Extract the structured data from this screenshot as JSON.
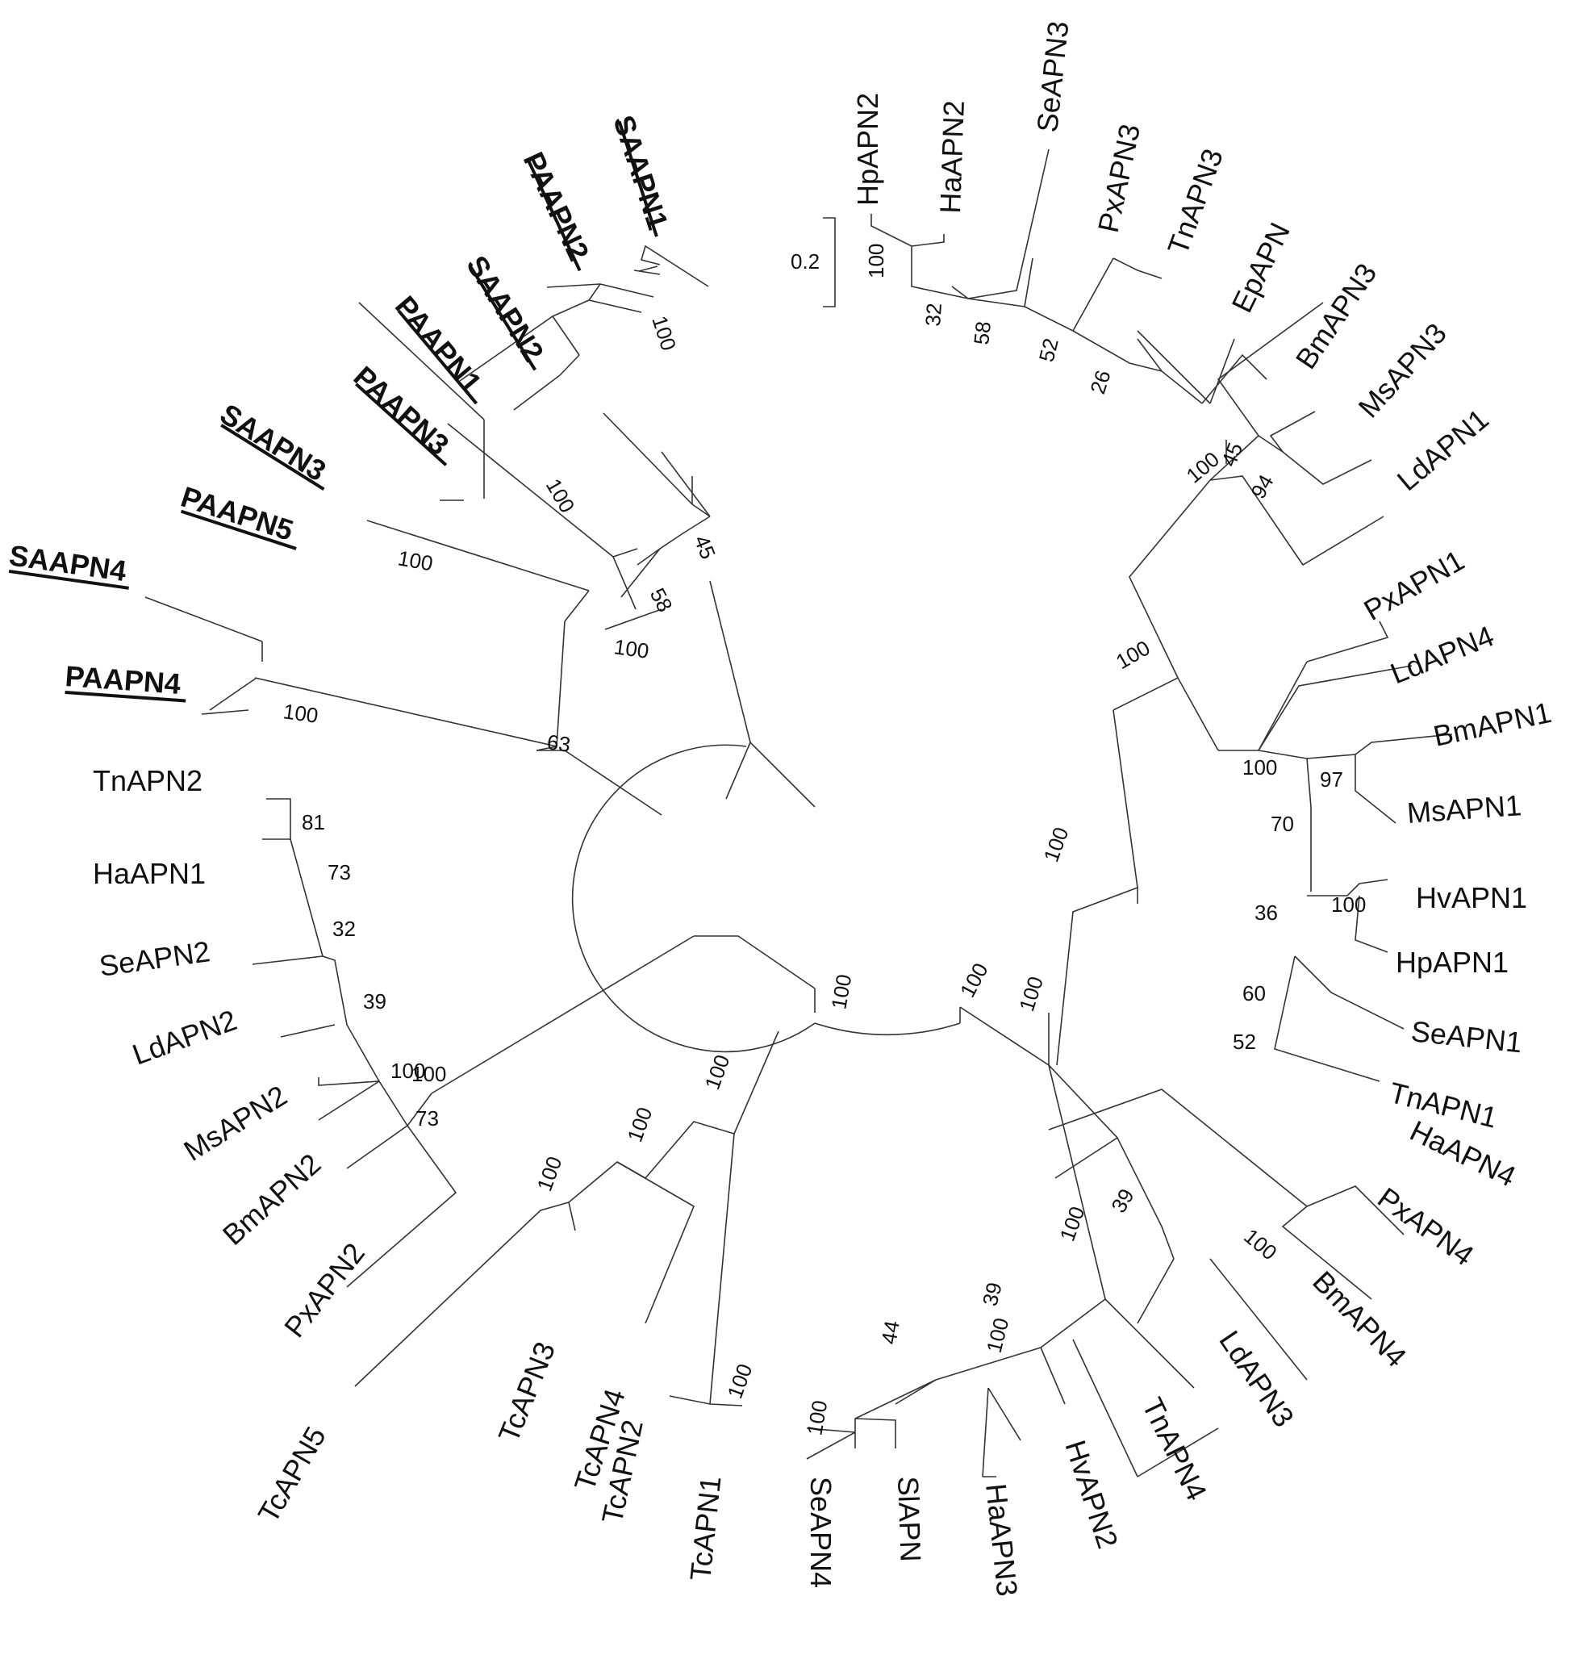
{
  "figure": {
    "type": "circular-phylogenetic-tree",
    "scale_bar": {
      "label": "0.2"
    }
  },
  "taxa_underlined": [
    "SAAPN1",
    "PAAPN2",
    "SAAPN2",
    "PAAPN1",
    "PAAPN3",
    "SAAPN3",
    "PAAPN5",
    "SAAPN4",
    "PAAPN4"
  ],
  "leaves": [
    {
      "id": "SAAPN1",
      "label": "SAAPN1",
      "bold": true
    },
    {
      "id": "PAAPN2",
      "label": "PAAPN2",
      "bold": true
    },
    {
      "id": "SAAPN2",
      "label": "SAAPN2",
      "bold": true
    },
    {
      "id": "PAAPN1",
      "label": "PAAPN1",
      "bold": true
    },
    {
      "id": "PAAPN3",
      "label": "PAAPN3",
      "bold": true
    },
    {
      "id": "SAAPN3",
      "label": "SAAPN3",
      "bold": true
    },
    {
      "id": "PAAPN5",
      "label": "PAAPN5",
      "bold": true
    },
    {
      "id": "SAAPN4",
      "label": "SAAPN4",
      "bold": true
    },
    {
      "id": "PAAPN4",
      "label": "PAAPN4",
      "bold": true
    },
    {
      "id": "TnAPN2",
      "label": "TnAPN2"
    },
    {
      "id": "HaAPN1",
      "label": "HaAPN1"
    },
    {
      "id": "SeAPN2",
      "label": "SeAPN2"
    },
    {
      "id": "LdAPN2",
      "label": "LdAPN2"
    },
    {
      "id": "MsAPN2",
      "label": "MsAPN2"
    },
    {
      "id": "BmAPN2",
      "label": "BmAPN2"
    },
    {
      "id": "PxAPN2",
      "label": "PxAPN2"
    },
    {
      "id": "TcAPN5",
      "label": "TcAPN5"
    },
    {
      "id": "TcAPN3",
      "label": "TcAPN3"
    },
    {
      "id": "TcAPN4",
      "label": "TcAPN4"
    },
    {
      "id": "TcAPN2",
      "label": "TcAPN2"
    },
    {
      "id": "TcAPN1",
      "label": "TcAPN1"
    },
    {
      "id": "SeAPN4",
      "label": "SeAPN4"
    },
    {
      "id": "SlAPN",
      "label": "SlAPN"
    },
    {
      "id": "HaAPN3",
      "label": "HaAPN3"
    },
    {
      "id": "HvAPN2",
      "label": "HvAPN2"
    },
    {
      "id": "TnAPN4",
      "label": "TnAPN4"
    },
    {
      "id": "LdAPN3",
      "label": "LdAPN3"
    },
    {
      "id": "BmAPN4",
      "label": "BmAPN4"
    },
    {
      "id": "PxAPN4",
      "label": "PxAPN4"
    },
    {
      "id": "HaAPN4",
      "label": "HaAPN4"
    },
    {
      "id": "TnAPN1",
      "label": "TnAPN1"
    },
    {
      "id": "SeAPN1",
      "label": "SeAPN1"
    },
    {
      "id": "HpAPN1",
      "label": "HpAPN1"
    },
    {
      "id": "HvAPN1",
      "label": "HvAPN1"
    },
    {
      "id": "MsAPN1",
      "label": "MsAPN1"
    },
    {
      "id": "BmAPN1",
      "label": "BmAPN1"
    },
    {
      "id": "LdAPN4",
      "label": "LdAPN4"
    },
    {
      "id": "PxAPN1",
      "label": "PxAPN1"
    },
    {
      "id": "LdAPN1",
      "label": "LdAPN1"
    },
    {
      "id": "MsAPN3",
      "label": "MsAPN3"
    },
    {
      "id": "BmAPN3",
      "label": "BmAPN3"
    },
    {
      "id": "EpAPN",
      "label": "EpAPN"
    },
    {
      "id": "TnAPN3",
      "label": "TnAPN3"
    },
    {
      "id": "PxAPN3",
      "label": "PxAPN3"
    },
    {
      "id": "SeAPN3",
      "label": "SeAPN3"
    },
    {
      "id": "HaAPN2",
      "label": "HaAPN2"
    },
    {
      "id": "HpAPN2",
      "label": "HpAPN2"
    }
  ],
  "bootstrap": [
    "100",
    "100",
    "45",
    "58",
    "100",
    "100",
    "100",
    "63",
    "100",
    "81",
    "73",
    "32",
    "39",
    "100",
    "73",
    "100",
    "100",
    "100",
    "100",
    "100",
    "44",
    "39",
    "100",
    "100",
    "39",
    "100",
    "100",
    "100",
    "100",
    "100",
    "52",
    "60",
    "36",
    "100",
    "70",
    "97",
    "100",
    "100",
    "94",
    "45",
    "100",
    "26",
    "52",
    "58",
    "32",
    "100"
  ]
}
